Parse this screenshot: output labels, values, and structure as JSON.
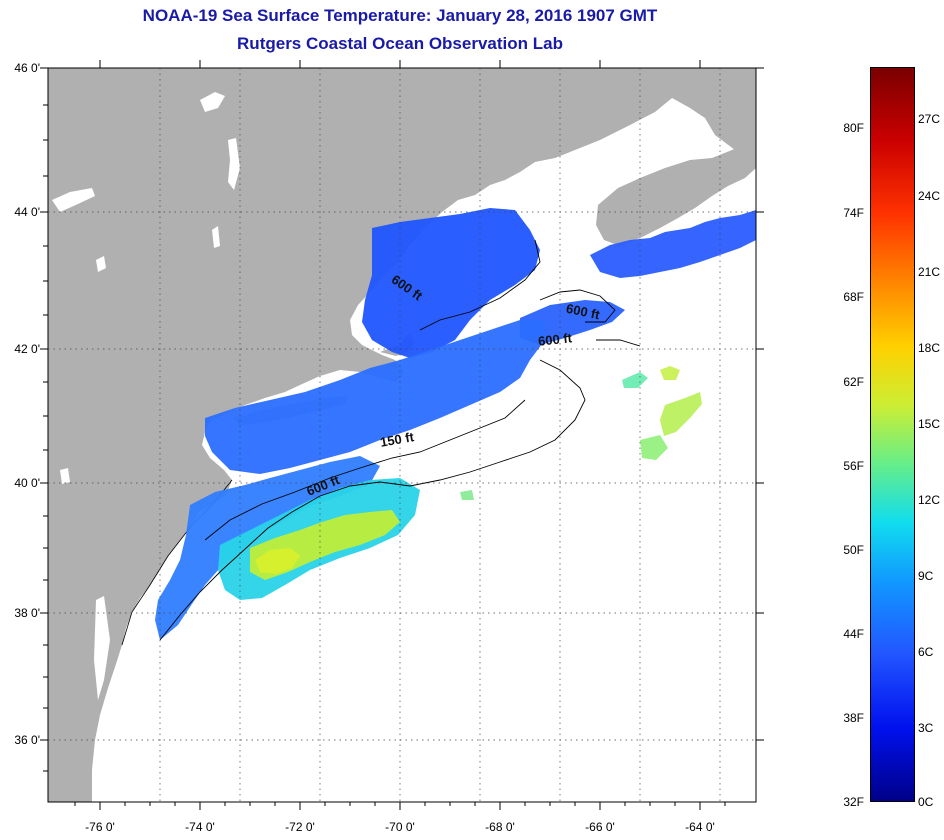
{
  "title_line1": "NOAA-19 Sea Surface Temperature:  January 28, 2016 1907 GMT",
  "title_line2": "Rutgers Coastal Ocean Observation Lab",
  "map": {
    "lat_labels": [
      "46 0'",
      "44 0'",
      "42 0'",
      "40 0'",
      "38 0'",
      "36 0'"
    ],
    "lon_labels": [
      "-76 0'",
      "-74 0'",
      "-72 0'",
      "-70 0'",
      "-68 0'",
      "-66 0'",
      "-64 0'"
    ],
    "contour_labels": [
      "600 ft",
      "600 ft",
      "600 ft",
      "150 ft",
      "600 ft"
    ],
    "land_color": "#b0b0b0",
    "no_data_color": "#ffffff"
  },
  "colorbar": {
    "fahrenheit_labels": [
      "80F",
      "74F",
      "68F",
      "62F",
      "56F",
      "50F",
      "44F",
      "38F",
      "32F"
    ],
    "celsius_labels": [
      "27C",
      "24C",
      "21C",
      "18C",
      "15C",
      "12C",
      "9C",
      "6C",
      "3C",
      "0C"
    ],
    "min_c": 0,
    "max_c": 28.9
  }
}
